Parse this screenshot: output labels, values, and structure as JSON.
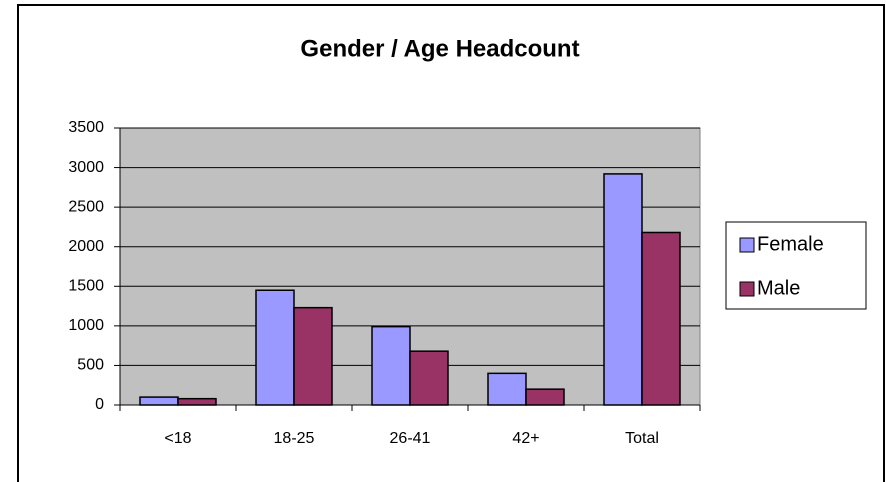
{
  "chart_data": {
    "type": "bar",
    "title": "Gender / Age Headcount",
    "categories": [
      "<18",
      "18-25",
      "26-41",
      "42+",
      "Total"
    ],
    "series": [
      {
        "name": "Female",
        "color": "#9999ff",
        "values": [
          100,
          1450,
          990,
          400,
          2920
        ]
      },
      {
        "name": "Male",
        "color": "#993366",
        "values": [
          80,
          1230,
          680,
          200,
          2180
        ]
      }
    ],
    "ylim": [
      0,
      3500
    ],
    "yticks": [
      0,
      500,
      1000,
      1500,
      2000,
      2500,
      3000,
      3500
    ],
    "grid": true,
    "legend": "right"
  }
}
